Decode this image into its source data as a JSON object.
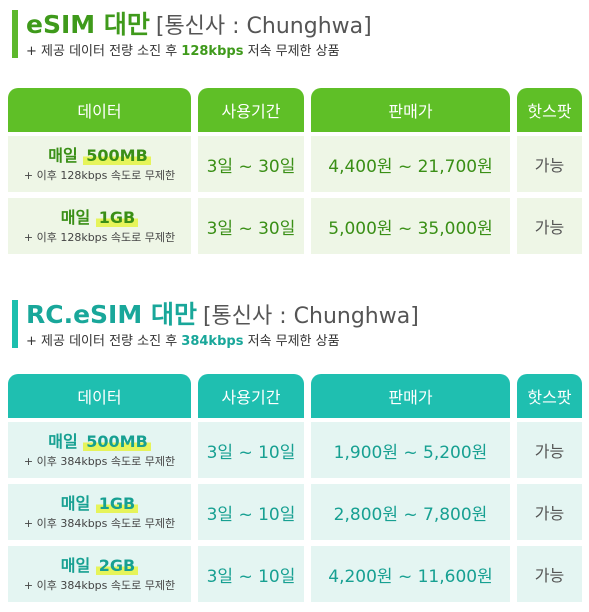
{
  "sections": [
    {
      "title": "eSIM 대만",
      "carrier": "[통신사 : Chunghwa]",
      "subtitle_prefix": "+ 제공 데이터 전량 소진 후 ",
      "subtitle_speed": "128kbps",
      "subtitle_suffix": " 저속 무제한 상품",
      "headers": [
        "데이터",
        "사용기간",
        "판매가",
        "핫스팟"
      ],
      "rows": [
        {
          "prefix": "매일",
          "data": "500MB",
          "note": "+ 이후 128kbps 속도로 무제한",
          "period": "3일 ~ 30일",
          "price": "4,400원 ~ 21,700원",
          "hotspot": "가능"
        },
        {
          "prefix": "매일",
          "data": "1GB",
          "note": "+ 이후 128kbps 속도로 무제한",
          "period": "3일 ~ 30일",
          "price": "5,000원 ~ 35,000원",
          "hotspot": "가능"
        }
      ]
    },
    {
      "title": "RC.eSIM 대만",
      "carrier": "[통신사 : Chunghwa]",
      "subtitle_prefix": "+ 제공 데이터 전량 소진 후 ",
      "subtitle_speed": "384kbps",
      "subtitle_suffix": " 저속 무제한 상품",
      "headers": [
        "데이터",
        "사용기간",
        "판매가",
        "핫스팟"
      ],
      "rows": [
        {
          "prefix": "매일",
          "data": "500MB",
          "note": "+ 이후 384kbps 속도로 무제한",
          "period": "3일 ~ 10일",
          "price": "1,900원 ~ 5,200원",
          "hotspot": "가능"
        },
        {
          "prefix": "매일",
          "data": "1GB",
          "note": "+ 이후 384kbps 속도로 무제한",
          "period": "3일 ~ 10일",
          "price": "2,800원 ~ 7,800원",
          "hotspot": "가능"
        },
        {
          "prefix": "매일",
          "data": "2GB",
          "note": "+ 이후 384kbps 속도로 무제한",
          "period": "3일 ~ 10일",
          "price": "4,200원 ~ 11,600원",
          "hotspot": "가능"
        }
      ]
    }
  ],
  "colors": {
    "esim_accent": "#5fbf27",
    "rc_esim_accent": "#1fbfb0",
    "highlight": "#e6f45a"
  }
}
